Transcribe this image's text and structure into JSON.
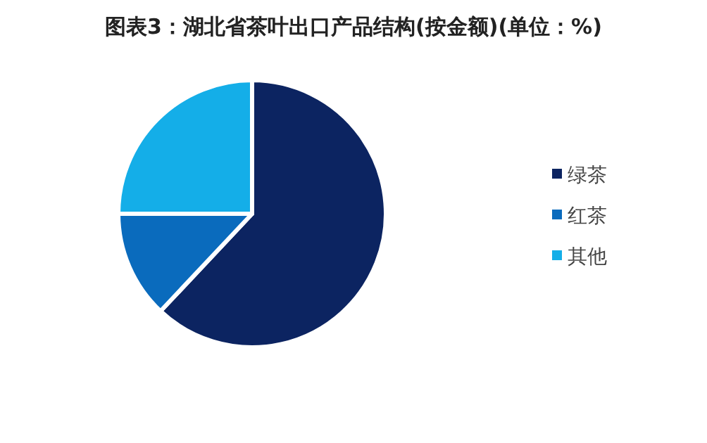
{
  "chart_data": {
    "type": "pie",
    "title": "图表3：湖北省茶叶出口产品结构(按金额)(单位：%)",
    "categories": [
      "绿茶",
      "红茶",
      "其他"
    ],
    "values": [
      62,
      13,
      25
    ],
    "colors": [
      "#0c2461",
      "#0a6bbd",
      "#14aee8"
    ],
    "legend": "right"
  }
}
